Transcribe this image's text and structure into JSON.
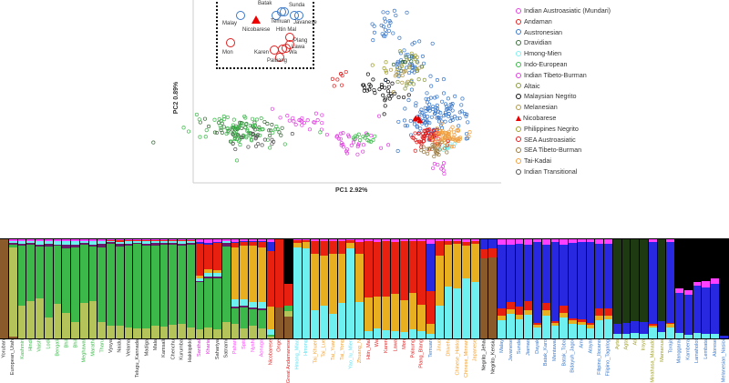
{
  "chart_data": [
    {
      "type": "scatter",
      "title": "",
      "xlabel": "PC1  2.92%",
      "ylabel": "PC2  0.89%",
      "xlim": [
        0,
        100
      ],
      "ylim": [
        0,
        100
      ],
      "legend_position": "right",
      "series": [
        {
          "name": "Indian Austroasiatic (Mundari)",
          "color": "#e040e0",
          "clusters": [
            [
              37,
              35,
              6,
              3,
              22
            ],
            [
              52,
              20,
              5,
              3,
              22
            ],
            [
              80,
              9,
              2,
              3,
              8
            ]
          ]
        },
        {
          "name": "Andaman",
          "color": "#e02020",
          "clusters": [
            [
              47,
              56,
              1.5,
              2,
              8
            ]
          ]
        },
        {
          "name": "Austronesian",
          "color": "#3a78c8",
          "clusters": [
            [
              62,
              85,
              3,
              6,
              25
            ],
            [
              70,
              65,
              4,
              6,
              40
            ],
            [
              80,
              38,
              5,
              6,
              110
            ],
            [
              72,
              32,
              3,
              3,
              12
            ]
          ]
        },
        {
          "name": "Dravidian",
          "color": "#3a6a3a",
          "clusters": [
            [
              17,
              29,
              7,
              3,
              45
            ],
            [
              69,
              65,
              2,
              3,
              8
            ]
          ]
        },
        {
          "name": "Hmong-Mien",
          "color": "#80f0f0",
          "clusters": [
            [
              82,
              20,
              1.5,
              1.5,
              15
            ]
          ]
        },
        {
          "name": "Indo-European",
          "color": "#3cb84a",
          "clusters": [
            [
              16,
              28,
              8,
              4,
              80
            ],
            [
              55,
              24,
              3,
              2,
              15
            ]
          ]
        },
        {
          "name": "Indian Tibeto-Burman",
          "color": "#e040e0",
          "clusters": [
            [
              47,
              25,
              2,
              2,
              8
            ]
          ]
        },
        {
          "name": "Altaic",
          "color": "#8a9a40",
          "clusters": [
            [
              71,
              55,
              2,
              2,
              8
            ]
          ]
        },
        {
          "name": "Malaysian Negrito",
          "color": "#111111",
          "clusters": [
            [
              62,
              50,
              4,
              4,
              35
            ]
          ]
        },
        {
          "name": "Melanesian",
          "color": "#b09a50",
          "clusters": [
            [
              68,
              58,
              3,
              4,
              14
            ]
          ]
        },
        {
          "name": "Nicobarese",
          "color": "#e00000",
          "clusters": [
            [
              73.4,
              34,
              0.8,
              0.8,
              6
            ]
          ]
        },
        {
          "name": "Philippines Negrito",
          "color": "#a0a030",
          "clusters": [
            [
              68,
              64,
              4,
              5,
              20
            ]
          ]
        },
        {
          "name": "SEA Austroasiatic",
          "color": "#e02020",
          "clusters": [
            [
              76,
              25,
              3,
              3,
              60
            ]
          ]
        },
        {
          "name": "SEA Tibeto-Burman",
          "color": "#9a7a40",
          "clusters": [
            [
              79,
              18,
              2,
              2,
              25
            ]
          ]
        },
        {
          "name": "Tai-Kadai",
          "color": "#f0a040",
          "clusters": [
            [
              83,
              25,
              2.5,
              2.5,
              60
            ]
          ]
        },
        {
          "name": "Indian Transitional",
          "color": "#555555",
          "clusters": [
            [
              19,
              25,
              5,
              3,
              20
            ]
          ]
        }
      ],
      "inset_labels": [
        "Batak",
        "Temuan",
        "Sunda",
        "Javanese",
        "Malay",
        "Nicobarese",
        "Htin Mal",
        "Plang",
        "Lawa",
        "Wa",
        "Mon",
        "Karen",
        "Paluang"
      ]
    },
    {
      "type": "bar",
      "stacked": true,
      "components": [
        "#8b5a2b",
        "#b5c45a",
        "#3cb84a",
        "#6a1a6a",
        "#6ff0f0",
        "#e8b020",
        "#e82010",
        "#2828e0",
        "#ff40ff",
        "#000000",
        "#1e3a12"
      ],
      "profiles": {
        "afr": [
          1,
          0,
          0,
          0,
          0,
          0,
          0,
          0,
          0,
          0,
          0
        ],
        "eur": [
          0.02,
          0.88,
          0.04,
          0.01,
          0.03,
          0,
          0,
          0,
          0.02,
          0,
          0
        ],
        "ie": [
          0,
          0.35,
          0.58,
          0.02,
          0.03,
          0,
          0,
          0,
          0.02,
          0,
          0
        ],
        "ie2": [
          0,
          0.2,
          0.72,
          0.03,
          0.03,
          0,
          0,
          0,
          0.02,
          0,
          0
        ],
        "dr": [
          0,
          0.12,
          0.82,
          0.02,
          0.02,
          0,
          0.01,
          0,
          0.01,
          0,
          0
        ],
        "aa": [
          0,
          0.12,
          0.45,
          0.02,
          0.03,
          0.03,
          0.3,
          0.02,
          0.03,
          0,
          0
        ],
        "tb": [
          0,
          0.12,
          0.18,
          0.02,
          0.06,
          0.55,
          0.04,
          0.01,
          0.02,
          0,
          0
        ],
        "nic": [
          0,
          0.02,
          0.02,
          0,
          0.06,
          0.22,
          0.55,
          0.1,
          0.03,
          0,
          0
        ],
        "onge": [
          0.3,
          0,
          0,
          0,
          0,
          0,
          0.7,
          0,
          0,
          0,
          0
        ],
        "gand": [
          0.2,
          0.05,
          0.05,
          0,
          0,
          0,
          0.2,
          0,
          0,
          0.5,
          0
        ],
        "hm": [
          0,
          0,
          0,
          0,
          0.92,
          0.05,
          0.02,
          0,
          0.01,
          0,
          0
        ],
        "tai": [
          0,
          0,
          0,
          0,
          0.3,
          0.55,
          0.13,
          0,
          0.02,
          0,
          0
        ],
        "aa2": [
          0,
          0,
          0,
          0,
          0.08,
          0.32,
          0.58,
          0,
          0.02,
          0,
          0
        ],
        "tem": [
          0,
          0,
          0,
          0,
          0.05,
          0.1,
          0.3,
          0.5,
          0.05,
          0,
          0
        ],
        "chn": [
          0,
          0,
          0,
          0,
          0.55,
          0.4,
          0.03,
          0,
          0.02,
          0,
          0
        ],
        "neg": [
          0.8,
          0,
          0,
          0,
          0,
          0,
          0.1,
          0.1,
          0,
          0,
          0
        ],
        "an": [
          0,
          0,
          0,
          0,
          0.2,
          0.05,
          0.08,
          0.62,
          0.05,
          0,
          0
        ],
        "an2": [
          0,
          0,
          0,
          0,
          0.12,
          0.03,
          0.02,
          0.8,
          0.03,
          0,
          0
        ],
        "phn": [
          0,
          0,
          0,
          0,
          0.05,
          0,
          0,
          0.12,
          0,
          0,
          0.83
        ],
        "ein": [
          0,
          0,
          0,
          0,
          0.05,
          0,
          0,
          0.45,
          0.05,
          0.45,
          0
        ],
        "mel": [
          0,
          0,
          0,
          0,
          0,
          0,
          0,
          0.03,
          0,
          0.97,
          0
        ]
      },
      "group_colors": {
        "base": "#333333",
        "ie": "#3cb84a",
        "dr": "#333333",
        "aa": "#e020e0",
        "tb": "#ff40ff",
        "and": "#e02020",
        "hm": "#60e0f0",
        "tai": "#f0a030",
        "sea": "#e02020",
        "an": "#3a78c8",
        "neg": "#111111",
        "ph": "#a0a020"
      },
      "populations": [
        {
          "label": "Yoruban",
          "g": "base",
          "p": "afr"
        },
        {
          "label": "European_Utah",
          "g": "base",
          "p": "eur"
        },
        {
          "label": "Kashmiri",
          "g": "ie",
          "p": "ie"
        },
        {
          "label": "Hindi",
          "g": "ie",
          "p": "ie"
        },
        {
          "label": "Vaish",
          "g": "ie",
          "p": "ie"
        },
        {
          "label": "Lodi",
          "g": "ie",
          "p": "ie2"
        },
        {
          "label": "Bengali",
          "g": "ie",
          "p": "ie"
        },
        {
          "label": "Bhil",
          "g": "ie",
          "p": "ie2"
        },
        {
          "label": "Bhil",
          "g": "ie",
          "p": "ie2"
        },
        {
          "label": "Meghawal",
          "g": "ie",
          "p": "ie"
        },
        {
          "label": "Marathi",
          "g": "ie",
          "p": "ie"
        },
        {
          "label": "Tharu",
          "g": "ie",
          "p": "ie2"
        },
        {
          "label": "Vysya",
          "g": "dr",
          "p": "dr"
        },
        {
          "label": "Naidu",
          "g": "dr",
          "p": "dr"
        },
        {
          "label": "Velama",
          "g": "dr",
          "p": "dr"
        },
        {
          "label": "Telugu_Kannada",
          "g": "dr",
          "p": "dr"
        },
        {
          "label": "Madiga",
          "g": "dr",
          "p": "dr"
        },
        {
          "label": "Mala",
          "g": "dr",
          "p": "dr"
        },
        {
          "label": "Kamsali",
          "g": "dr",
          "p": "dr"
        },
        {
          "label": "Chenchu",
          "g": "dr",
          "p": "dr"
        },
        {
          "label": "Kurumba",
          "g": "dr",
          "p": "dr"
        },
        {
          "label": "Hakkipikki",
          "g": "dr",
          "p": "dr"
        },
        {
          "label": "Santhal",
          "g": "aa",
          "p": "aa"
        },
        {
          "label": "Kharia",
          "g": "aa",
          "p": "aa"
        },
        {
          "label": "Sahariya",
          "g": "dr",
          "p": "aa"
        },
        {
          "label": "Satnami",
          "g": "dr",
          "p": "ie2"
        },
        {
          "label": "Pahari",
          "g": "tb",
          "p": "tb"
        },
        {
          "label": "Spiti",
          "g": "tb",
          "p": "tb"
        },
        {
          "label": "Nyshi",
          "g": "tb",
          "p": "tb"
        },
        {
          "label": "Aonaga",
          "g": "tb",
          "p": "tb"
        },
        {
          "label": "Nicobarese",
          "g": "and",
          "p": "nic"
        },
        {
          "label": "Onge",
          "g": "and",
          "p": "onge"
        },
        {
          "label": "Great Andamanese",
          "g": "and",
          "p": "gand"
        },
        {
          "label": "Hmong_Miao",
          "g": "hm",
          "p": "hm"
        },
        {
          "label": "Hmong",
          "g": "hm",
          "p": "hm"
        },
        {
          "label": "Tai_Khuen",
          "g": "tai",
          "p": "tai"
        },
        {
          "label": "Tai_Lue",
          "g": "tai",
          "p": "tai"
        },
        {
          "label": "Tai_Yuan",
          "g": "tai",
          "p": "tai"
        },
        {
          "label": "Tai_Yong",
          "g": "tai",
          "p": "tai"
        },
        {
          "label": "Yao_Iu_Mien",
          "g": "hm",
          "p": "hm"
        },
        {
          "label": "Zhuang_N",
          "g": "tai",
          "p": "tai"
        },
        {
          "label": "Htin_Mal",
          "g": "sea",
          "p": "aa2"
        },
        {
          "label": "Wa",
          "g": "sea",
          "p": "aa2"
        },
        {
          "label": "Karen",
          "g": "sea",
          "p": "aa2"
        },
        {
          "label": "Lawa",
          "g": "sea",
          "p": "aa2"
        },
        {
          "label": "Mon",
          "g": "sea",
          "p": "aa2"
        },
        {
          "label": "Palaung",
          "g": "sea",
          "p": "aa2"
        },
        {
          "label": "Plang_Blang",
          "g": "sea",
          "p": "aa2"
        },
        {
          "label": "Temuan",
          "g": "an",
          "p": "tem"
        },
        {
          "label": "Jinuo",
          "g": "tai",
          "p": "tai"
        },
        {
          "label": "Dhivehi",
          "g": "tai",
          "p": "chn"
        },
        {
          "label": "Chinese_Hakka",
          "g": "tai",
          "p": "chn"
        },
        {
          "label": "Chinese_Minnan",
          "g": "tai",
          "p": "chn"
        },
        {
          "label": "Japanese",
          "g": "tai",
          "p": "chn"
        },
        {
          "label": "Negrito_Jehai",
          "g": "neg",
          "p": "neg"
        },
        {
          "label": "Negrito_Kensiu",
          "g": "neg",
          "p": "neg"
        },
        {
          "label": "Malay",
          "g": "an",
          "p": "an"
        },
        {
          "label": "Javanese",
          "g": "an",
          "p": "an"
        },
        {
          "label": "Sunda",
          "g": "an",
          "p": "an"
        },
        {
          "label": "Jiamao",
          "g": "an",
          "p": "an"
        },
        {
          "label": "Dayak",
          "g": "an",
          "p": "an2"
        },
        {
          "label": "Batak_Karo",
          "g": "an",
          "p": "an"
        },
        {
          "label": "Mentawai",
          "g": "an",
          "p": "an2"
        },
        {
          "label": "Batak_Toba",
          "g": "an",
          "p": "an"
        },
        {
          "label": "Bidayuh_Jagoi",
          "g": "an",
          "p": "an2"
        },
        {
          "label": "Ami",
          "g": "an",
          "p": "an2"
        },
        {
          "label": "Atayal",
          "g": "an",
          "p": "an2"
        },
        {
          "label": "Filipino_Ilocano",
          "g": "an",
          "p": "an"
        },
        {
          "label": "Filipino_Tagalog",
          "g": "an",
          "p": "an"
        },
        {
          "label": "Ayta",
          "g": "ph",
          "p": "phn"
        },
        {
          "label": "Agta",
          "g": "ph",
          "p": "phn"
        },
        {
          "label": "Ati",
          "g": "ph",
          "p": "phn"
        },
        {
          "label": "Iraya",
          "g": "ph",
          "p": "phn"
        },
        {
          "label": "Minahasa_Manado",
          "g": "ph",
          "p": "an2"
        },
        {
          "label": "Mamanua",
          "g": "ph",
          "p": "phn"
        },
        {
          "label": "Toraja",
          "g": "an",
          "p": "an2"
        },
        {
          "label": "Manggarai",
          "g": "an",
          "p": "ein"
        },
        {
          "label": "Kambera",
          "g": "an",
          "p": "ein"
        },
        {
          "label": "Lamaholot",
          "g": "an",
          "p": "ein"
        },
        {
          "label": "Lembata",
          "g": "an",
          "p": "ein"
        },
        {
          "label": "Alorese",
          "g": "an",
          "p": "ein"
        },
        {
          "label": "Melanesian_Nasioi",
          "g": "an",
          "p": "mel"
        }
      ]
    }
  ]
}
